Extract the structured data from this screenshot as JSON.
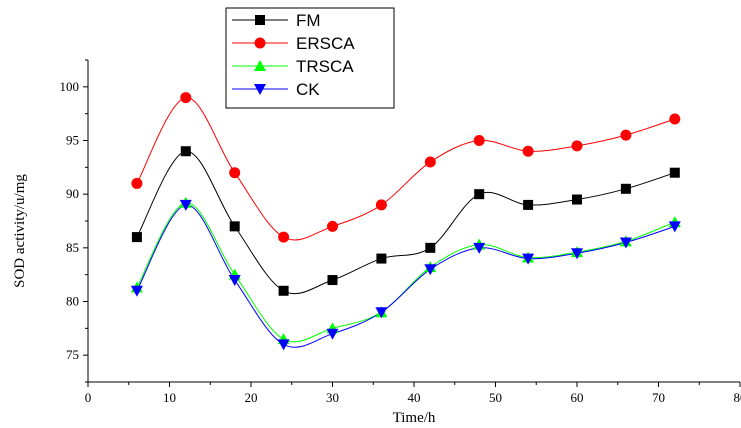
{
  "chart_data": {
    "type": "line",
    "title": "",
    "xlabel": "Time/h",
    "ylabel": "SOD activity/u/mg",
    "xlim": [
      0,
      80
    ],
    "ylim": [
      72.5,
      102.5
    ],
    "x_ticks": [
      0,
      10,
      20,
      30,
      40,
      50,
      60,
      70,
      80
    ],
    "y_ticks": [
      75,
      80,
      85,
      90,
      95,
      100
    ],
    "grid": false,
    "legend_position": "top-left",
    "x": [
      6,
      12,
      18,
      24,
      30,
      36,
      42,
      48,
      54,
      60,
      66,
      72
    ],
    "series": [
      {
        "name": "FM",
        "color": "#000000",
        "marker": "square",
        "values": [
          86,
          94,
          87,
          81,
          82,
          84,
          85,
          90,
          89,
          89.5,
          90.5,
          92
        ]
      },
      {
        "name": "ERSCA",
        "color": "#ff0000",
        "marker": "circle",
        "values": [
          91,
          99,
          92,
          86,
          87,
          89,
          93,
          95,
          94,
          94.5,
          95.5,
          97
        ]
      },
      {
        "name": "TRSCA",
        "color": "#00ff00",
        "marker": "triangle-up",
        "values": [
          81.3,
          89.2,
          82.5,
          76.5,
          77.5,
          79,
          83.2,
          85.3,
          84.1,
          84.6,
          85.6,
          87.4
        ]
      },
      {
        "name": "CK",
        "color": "#0000ff",
        "marker": "triangle-down",
        "values": [
          81,
          89,
          82,
          76,
          77,
          79,
          83,
          85,
          84,
          84.5,
          85.5,
          87
        ]
      }
    ]
  }
}
